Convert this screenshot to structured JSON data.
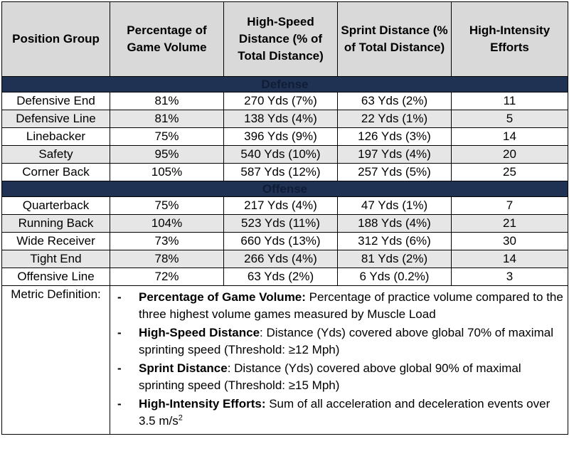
{
  "headers": [
    "Position Group",
    "Percentage of Game Volume",
    "High-Speed Distance (% of Total Distance)",
    "Sprint Distance (% of Total Distance)",
    "High-Intensity Efforts"
  ],
  "sections": [
    {
      "label": "Defense",
      "rows": [
        [
          "Defensive End",
          "81%",
          "270 Yds (7%)",
          "63 Yds (2%)",
          "11"
        ],
        [
          "Defensive Line",
          "81%",
          "138 Yds (4%)",
          "22 Yds (1%)",
          "5"
        ],
        [
          "Linebacker",
          "75%",
          "396 Yds (9%)",
          "126 Yds (3%)",
          "14"
        ],
        [
          "Safety",
          "95%",
          "540 Yds (10%)",
          "197 Yds (4%)",
          "20"
        ],
        [
          "Corner Back",
          "105%",
          "587 Yds (12%)",
          "257 Yds (5%)",
          "25"
        ]
      ]
    },
    {
      "label": "Offense",
      "rows": [
        [
          "Quarterback",
          "75%",
          "217 Yds (4%)",
          "47 Yds (1%)",
          "7"
        ],
        [
          "Running Back",
          "104%",
          "523 Yds (11%)",
          "188 Yds (4%)",
          "21"
        ],
        [
          "Wide Receiver",
          "73%",
          "660 Yds (13%)",
          "312 Yds (6%)",
          "30"
        ],
        [
          "Tight End",
          "78%",
          "266 Yds (4%)",
          "81 Yds (2%)",
          "14"
        ],
        [
          "Offensive Line",
          "72%",
          "63 Yds (2%)",
          "6 Yds (0.2%)",
          "3"
        ]
      ]
    }
  ],
  "definitions": {
    "label": "Metric Definition:",
    "bullet": "-",
    "items": [
      {
        "term": "Percentage of Game Volume:",
        "text": " Percentage of practice volume compared to the three highest volume games measured by Muscle Load"
      },
      {
        "term": "High-Speed Distance",
        "text": ": Distance (Yds) covered above global 70% of maximal sprinting speed (Threshold: ≥12 Mph)"
      },
      {
        "term": "Sprint Distance",
        "text": ": Distance (Yds) covered above global 90% of maximal sprinting speed (Threshold: ≥15 Mph)"
      },
      {
        "term": "High-Intensity Efforts:",
        "text": " Sum of all acceleration and deceleration events over 3.5 m/s",
        "sup": "2"
      }
    ]
  }
}
